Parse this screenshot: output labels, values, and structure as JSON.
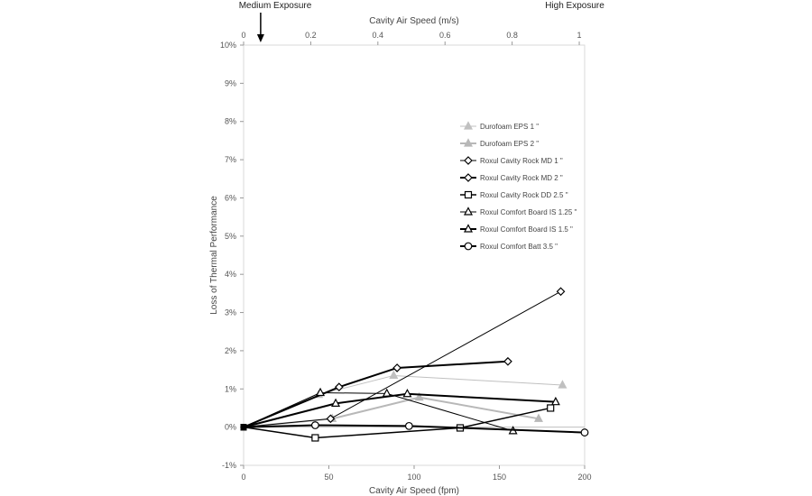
{
  "chart_data": {
    "type": "line",
    "xlabel": "Cavity Air Speed (fpm)",
    "ylabel": "Loss of Thermal Performance",
    "x2label": "Cavity Air Speed (m/s)",
    "xlim": [
      0,
      200
    ],
    "ylim": [
      -1,
      10
    ],
    "x_ticks": [
      "0",
      "50",
      "100",
      "150",
      "200"
    ],
    "y_ticks": [
      "-1%",
      "0%",
      "1%",
      "2%",
      "3%",
      "4%",
      "5%",
      "6%",
      "7%",
      "8%",
      "9%",
      "10%"
    ],
    "x2_ticks": [
      "0",
      "0.2",
      "0.4",
      "0.6",
      "0.8",
      "1"
    ],
    "x2_tick_fpm": [
      0,
      39.37,
      78.74,
      118.11,
      157.48,
      196.85
    ],
    "annotations": [
      {
        "text": "Medium Exposure",
        "x": 10,
        "arrow": true
      },
      {
        "text": "High Exposure",
        "x": 196.85,
        "arrow": false
      }
    ],
    "grid": false,
    "legend_position": "right",
    "series": [
      {
        "name": "Durofoam EPS 1 \"",
        "color": "#c0c0c0",
        "marker": "triangle-filled",
        "width": 1,
        "x": [
          0,
          44,
          88,
          187
        ],
        "y": [
          0,
          0.85,
          1.35,
          1.1
        ]
      },
      {
        "name": "Durofoam EPS 2 \"",
        "color": "#b8b8b8",
        "marker": "triangle-filled",
        "width": 2,
        "x": [
          0,
          52,
          103,
          173
        ],
        "y": [
          0,
          0.22,
          0.78,
          0.22
        ]
      },
      {
        "name": "Roxul Cavity Rock MD 1 \"",
        "color": "#000000",
        "marker": "diamond",
        "width": 1,
        "x": [
          0,
          51,
          186
        ],
        "y": [
          0,
          0.22,
          3.55
        ]
      },
      {
        "name": "Roxul Cavity Rock MD 2 \"",
        "color": "#000000",
        "marker": "diamond",
        "width": 2,
        "x": [
          0,
          56,
          90,
          155
        ],
        "y": [
          0,
          1.05,
          1.55,
          1.72
        ]
      },
      {
        "name": "Roxul Cavity Rock DD 2.5 \"",
        "color": "#000000",
        "marker": "square",
        "width": 1.5,
        "x": [
          0,
          42,
          127,
          180
        ],
        "y": [
          0,
          -0.28,
          -0.02,
          0.5
        ]
      },
      {
        "name": "Roxul Comfort Board IS 1.25 \"",
        "color": "#000000",
        "marker": "triangle",
        "width": 1,
        "x": [
          0,
          45,
          84,
          158
        ],
        "y": [
          0,
          0.9,
          0.88,
          -0.1
        ]
      },
      {
        "name": "Roxul Comfort Board IS 1.5 \"",
        "color": "#000000",
        "marker": "triangle",
        "width": 2,
        "x": [
          0,
          54,
          96,
          183
        ],
        "y": [
          0,
          0.62,
          0.87,
          0.66
        ]
      },
      {
        "name": "Roxul Comfort Batt 3.5 \"",
        "color": "#000000",
        "marker": "circle",
        "width": 2,
        "x": [
          0,
          42,
          97,
          200
        ],
        "y": [
          0,
          0.05,
          0.03,
          -0.14
        ]
      }
    ]
  }
}
